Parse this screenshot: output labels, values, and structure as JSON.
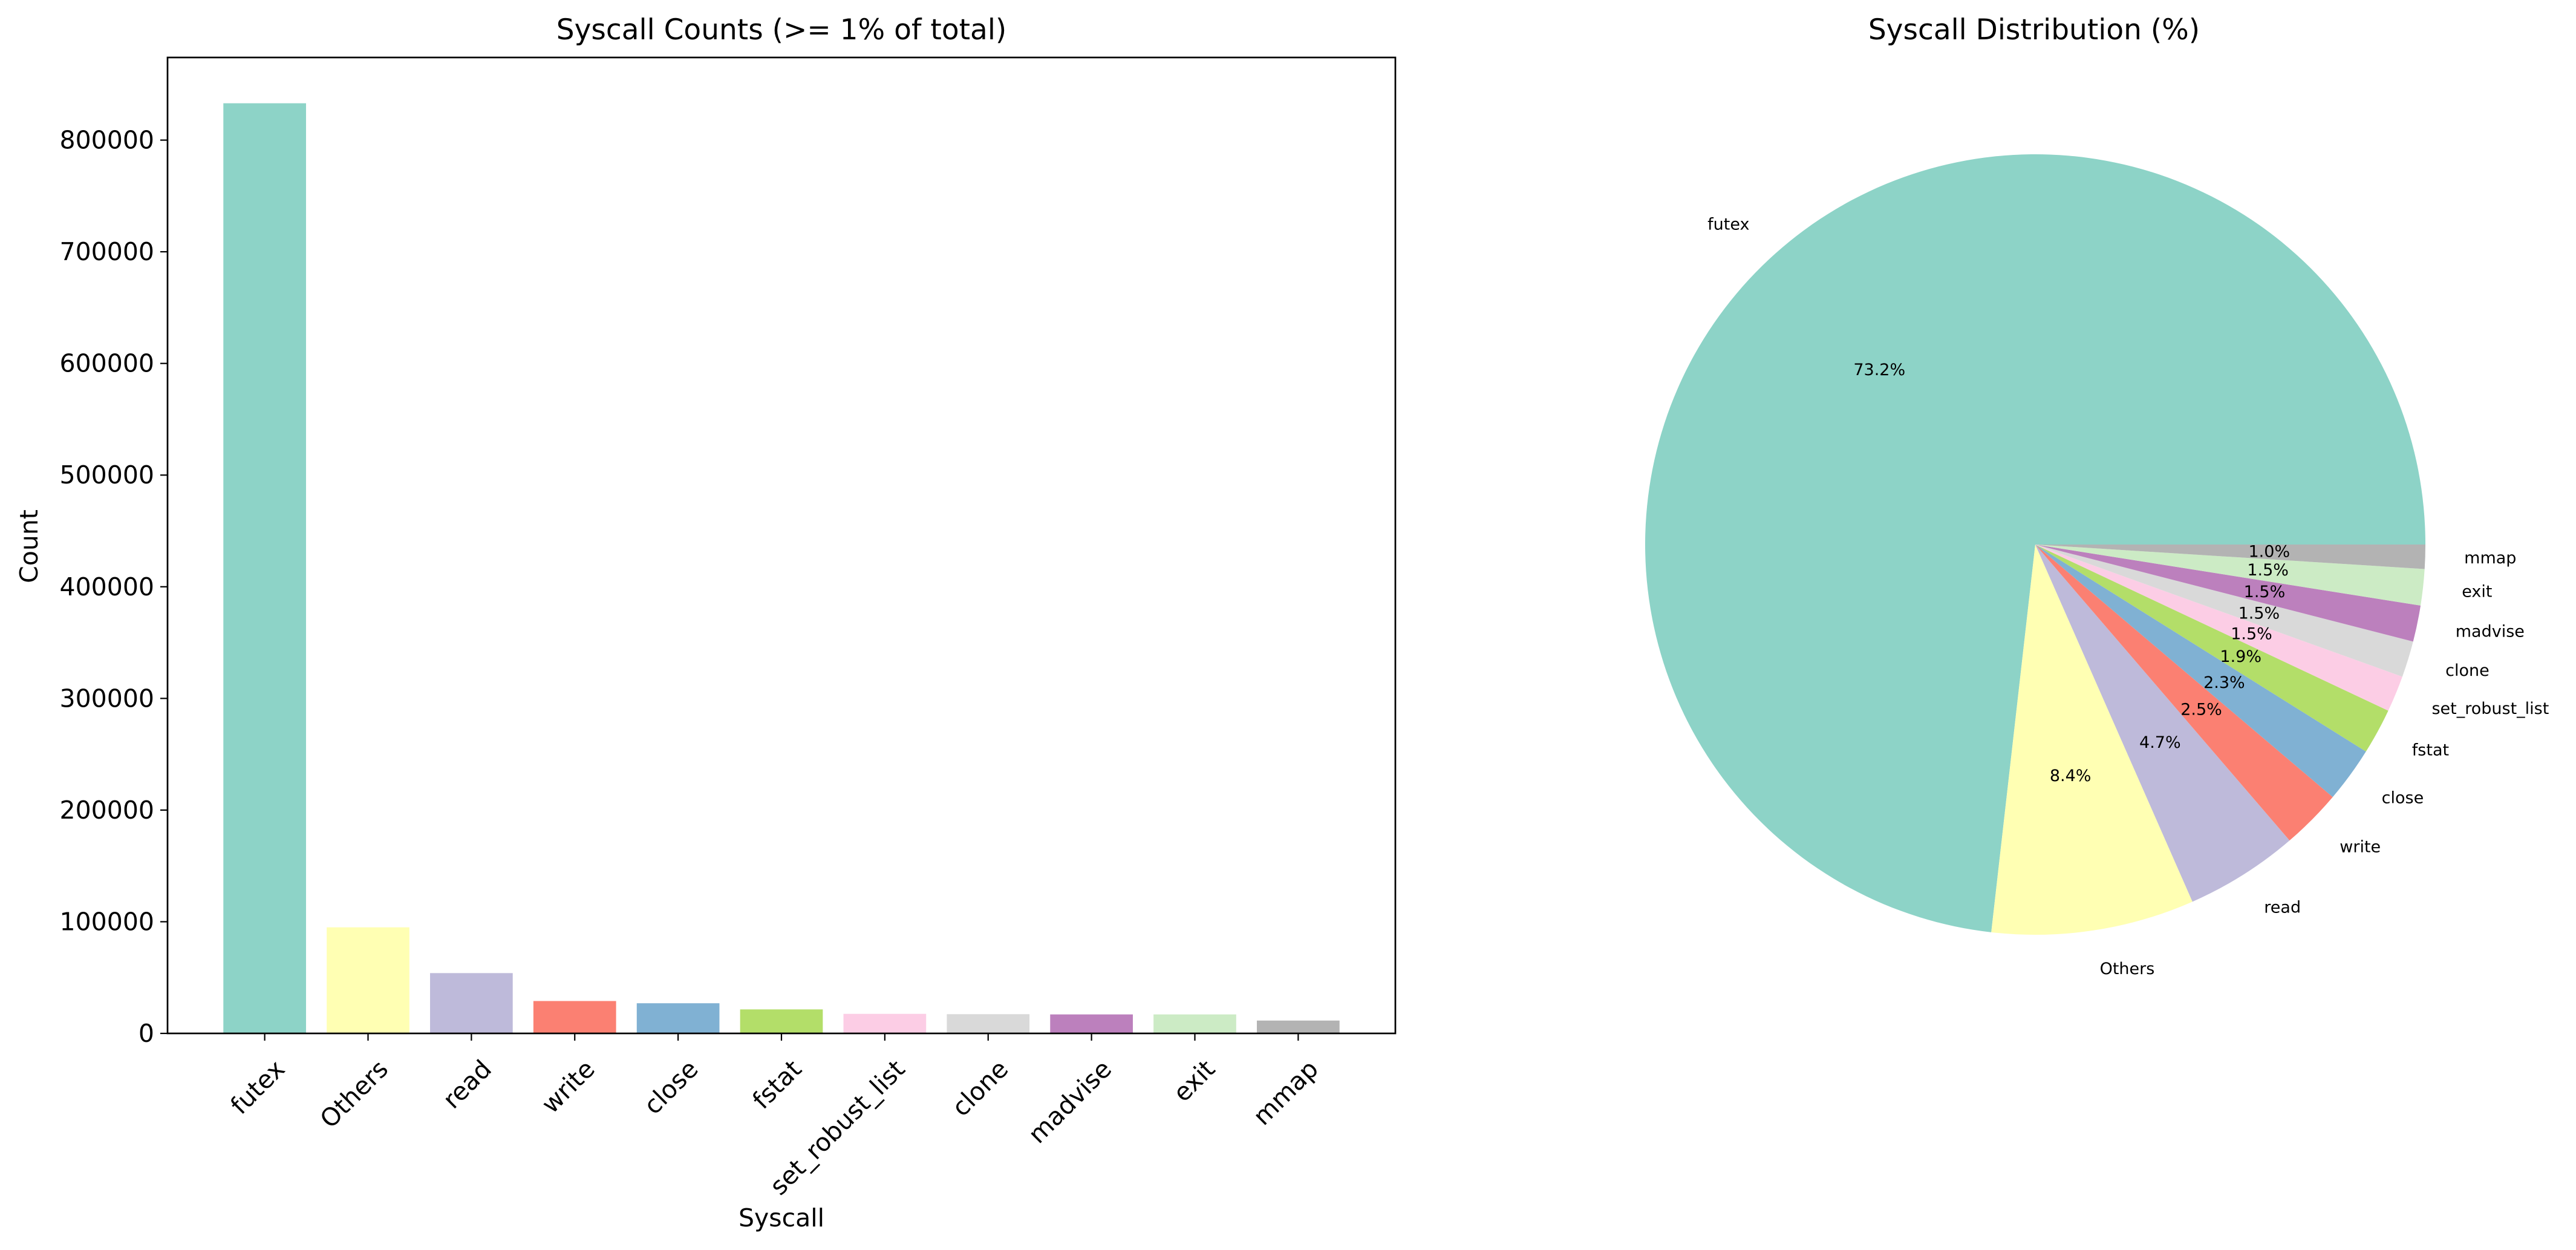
{
  "chart_data": [
    {
      "type": "bar",
      "title": "Syscall Counts (>= 1% of total)",
      "xlabel": "Syscall",
      "ylabel": "Count",
      "categories": [
        "futex",
        "Others",
        "read",
        "write",
        "close",
        "fstat",
        "set_robust_list",
        "clone",
        "madvise",
        "exit",
        "mmap"
      ],
      "values": [
        833000,
        95000,
        54000,
        29000,
        27000,
        21500,
        17500,
        17200,
        17000,
        17000,
        11500
      ],
      "colors": [
        "#8dd3c7",
        "#ffffb3",
        "#bebada",
        "#fb8072",
        "#80b1d3",
        "#b3de69",
        "#fccde5",
        "#d9d9d9",
        "#bc80bd",
        "#ccebc5",
        "#b3b3b3"
      ],
      "ylim": [
        0,
        874000
      ],
      "yticks": [
        0,
        100000,
        200000,
        300000,
        400000,
        500000,
        600000,
        700000,
        800000
      ],
      "grid": false
    },
    {
      "type": "pie",
      "title": "Syscall Distribution (%)",
      "labels": [
        "futex",
        "Others",
        "read",
        "write",
        "close",
        "fstat",
        "set_robust_list",
        "clone",
        "madvise",
        "exit",
        "mmap"
      ],
      "values": [
        73.2,
        8.4,
        4.7,
        2.5,
        2.3,
        1.9,
        1.5,
        1.5,
        1.5,
        1.5,
        1.0
      ],
      "pct_labels": [
        "73.2%",
        "8.4%",
        "4.7%",
        "2.5%",
        "2.3%",
        "1.9%",
        "1.5%",
        "1.5%",
        "1.5%",
        "1.5%",
        "1.0%"
      ],
      "colors": [
        "#8dd3c7",
        "#ffffb3",
        "#bebada",
        "#fb8072",
        "#80b1d3",
        "#b3de69",
        "#fccde5",
        "#d9d9d9",
        "#bc80bd",
        "#ccebc5",
        "#b3b3b3"
      ],
      "start_angle_deg": 0,
      "direction": "counterclockwise"
    }
  ]
}
